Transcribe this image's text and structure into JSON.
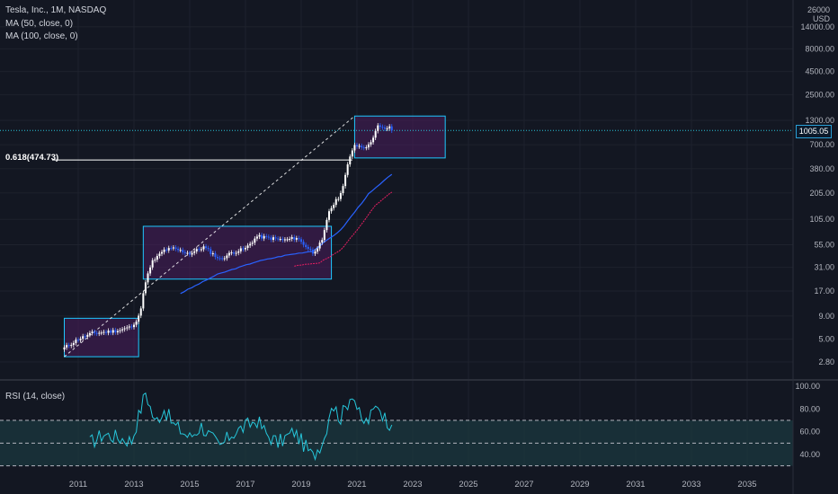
{
  "legend": {
    "symbol": "Tesla, Inc., 1M, NASDAQ",
    "ma50": "MA (50, close, 0)",
    "ma100": "MA (100, close, 0)",
    "rsi": "RSI (14, close)"
  },
  "fib_label": "0.618(474.73)",
  "last_price": "1005.05",
  "currency": {
    "top": "26000",
    "unit": "USD"
  },
  "colors": {
    "background": "#131722",
    "candle_up": "#ffffff",
    "candle_down": "#2962ff",
    "ma50": "#2962ff",
    "ma100": "#e91e63",
    "box_fill": "#4a1d5c",
    "box_border": "#1ec8ff",
    "rsi_line": "#26c6da",
    "rsi_band": "#1b3a40",
    "price_line": "#26c6da"
  },
  "chart_data": {
    "type": "candlestick",
    "y_scale": "log",
    "y_ticks": [
      2.8,
      5.0,
      9.0,
      17.0,
      31.0,
      55.0,
      105.0,
      205.0,
      380.0,
      700.0,
      1300.0,
      2500.0,
      4500.0,
      8000.0,
      14000.0
    ],
    "y_tick_labels": [
      "2.80",
      "5.00",
      "9.00",
      "17.00",
      "31.00",
      "55.00",
      "105.00",
      "205.00",
      "380.00",
      "700.00",
      "1300.00",
      "2500.00",
      "4500.00",
      "8000.00",
      "14000.00"
    ],
    "x_ticks": [
      "2011",
      "2013",
      "2015",
      "2017",
      "2019",
      "2021",
      "2023",
      "2025",
      "2027",
      "2029",
      "2031",
      "2033",
      "2035"
    ],
    "last_close": 1005.05,
    "fib_0618": 474.73,
    "boxes": [
      {
        "from": "2010-07",
        "to": "2013-03",
        "low": 3.2,
        "high": 8.5
      },
      {
        "from": "2013-05",
        "to": "2020-02",
        "low": 23,
        "high": 88
      },
      {
        "from": "2020-12",
        "to": "2024-03",
        "low": 500,
        "high": 1450
      }
    ],
    "ohlc_anchors": [
      [
        "2010-07",
        4.0
      ],
      [
        "2011-01",
        5.0
      ],
      [
        "2011-07",
        5.8
      ],
      [
        "2012-01",
        6.0
      ],
      [
        "2012-07",
        6.3
      ],
      [
        "2013-01",
        7.0
      ],
      [
        "2013-04",
        11
      ],
      [
        "2013-06",
        22
      ],
      [
        "2013-09",
        36
      ],
      [
        "2014-02",
        48
      ],
      [
        "2014-06",
        50
      ],
      [
        "2015-01",
        44
      ],
      [
        "2015-07",
        52
      ],
      [
        "2016-02",
        38
      ],
      [
        "2016-07",
        45
      ],
      [
        "2017-01",
        50
      ],
      [
        "2017-06",
        68
      ],
      [
        "2017-10",
        66
      ],
      [
        "2018-06",
        62
      ],
      [
        "2018-11",
        66
      ],
      [
        "2019-06",
        45
      ],
      [
        "2019-10",
        60
      ],
      [
        "2020-01",
        130
      ],
      [
        "2020-06",
        200
      ],
      [
        "2020-09",
        420
      ],
      [
        "2020-12",
        705
      ],
      [
        "2021-03",
        667
      ],
      [
        "2021-06",
        680
      ],
      [
        "2021-10",
        1114
      ],
      [
        "2021-12",
        1056
      ],
      [
        "2022-03",
        1077
      ],
      [
        "2022-04",
        1005
      ]
    ],
    "ma50_anchors": [
      [
        "2014-09",
        16
      ],
      [
        "2016-01",
        26
      ],
      [
        "2017-06",
        36
      ],
      [
        "2018-06",
        42
      ],
      [
        "2019-06",
        47
      ],
      [
        "2020-06",
        80
      ],
      [
        "2021-06",
        200
      ],
      [
        "2022-04",
        330
      ]
    ],
    "ma100_anchors": [
      [
        "2018-10",
        32
      ],
      [
        "2019-09",
        35
      ],
      [
        "2020-06",
        48
      ],
      [
        "2021-01",
        80
      ],
      [
        "2021-09",
        150
      ],
      [
        "2022-04",
        210
      ]
    ],
    "rsi": {
      "y_ticks": [
        40.0,
        60.0,
        80.0,
        100.0
      ],
      "y_tick_labels": [
        "40.00",
        "60.00",
        "80.00",
        "100.00"
      ],
      "upper": 70,
      "lower": 30,
      "mid": 50,
      "anchors": [
        [
          "2011-06",
          50
        ],
        [
          "2011-12",
          58
        ],
        [
          "2012-06",
          55
        ],
        [
          "2012-12",
          52
        ],
        [
          "2013-06",
          95
        ],
        [
          "2013-10",
          68
        ],
        [
          "2014-02",
          80
        ],
        [
          "2014-06",
          66
        ],
        [
          "2015-01",
          55
        ],
        [
          "2015-06",
          65
        ],
        [
          "2016-02",
          46
        ],
        [
          "2016-07",
          58
        ],
        [
          "2017-06",
          70
        ],
        [
          "2017-10",
          58
        ],
        [
          "2018-03",
          50
        ],
        [
          "2018-10",
          60
        ],
        [
          "2019-06",
          38
        ],
        [
          "2019-11",
          55
        ],
        [
          "2020-02",
          85
        ],
        [
          "2020-06",
          72
        ],
        [
          "2020-11",
          95
        ],
        [
          "2021-03",
          68
        ],
        [
          "2021-06",
          70
        ],
        [
          "2021-10",
          85
        ],
        [
          "2022-01",
          72
        ],
        [
          "2022-04",
          66
        ]
      ]
    }
  }
}
